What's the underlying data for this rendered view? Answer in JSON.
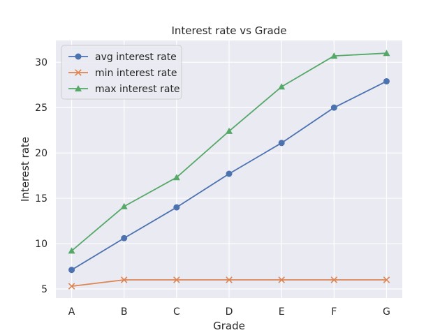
{
  "chart_data": {
    "type": "line",
    "title": "Interest rate vs Grade",
    "xlabel": "Grade",
    "ylabel": "Interest rate",
    "categories": [
      "A",
      "B",
      "C",
      "D",
      "E",
      "F",
      "G"
    ],
    "yticks": [
      5,
      10,
      15,
      20,
      25,
      30
    ],
    "ylim": [
      4.0,
      32.4
    ],
    "grid": true,
    "legend_position": "upper-left",
    "series": [
      {
        "name": "avg interest rate",
        "marker": "circle",
        "color": "#4c72b0",
        "values": [
          7.1,
          10.6,
          14.0,
          17.7,
          21.1,
          25.0,
          27.9
        ]
      },
      {
        "name": "min interest rate",
        "marker": "x",
        "color": "#dd8452",
        "values": [
          5.3,
          6.0,
          6.0,
          6.0,
          6.0,
          6.0,
          6.0
        ]
      },
      {
        "name": "max interest rate",
        "marker": "triangle",
        "color": "#55a868",
        "values": [
          9.2,
          14.1,
          17.3,
          22.4,
          27.3,
          30.7,
          31.0
        ]
      }
    ]
  }
}
